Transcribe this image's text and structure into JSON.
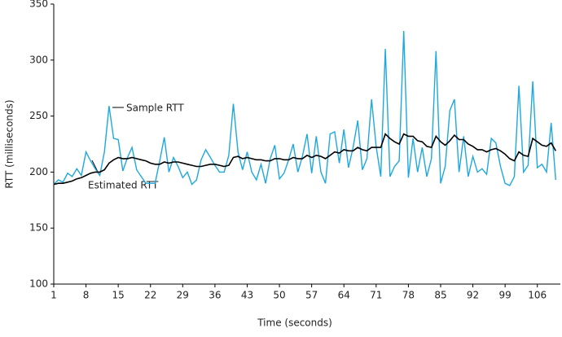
{
  "chart_data": {
    "type": "line",
    "xlabel": "Time (seconds)",
    "ylabel": "RTT (milliseconds)",
    "x": [
      1,
      2,
      3,
      4,
      5,
      6,
      7,
      8,
      9,
      10,
      11,
      12,
      13,
      14,
      15,
      16,
      17,
      18,
      19,
      20,
      21,
      22,
      23,
      24,
      25,
      26,
      27,
      28,
      29,
      30,
      31,
      32,
      33,
      34,
      35,
      36,
      37,
      38,
      39,
      40,
      41,
      42,
      43,
      44,
      45,
      46,
      47,
      48,
      49,
      50,
      51,
      52,
      53,
      54,
      55,
      56,
      57,
      58,
      59,
      60,
      61,
      62,
      63,
      64,
      65,
      66,
      67,
      68,
      69,
      70,
      71,
      72,
      73,
      74,
      75,
      76,
      77,
      78,
      79,
      80,
      81,
      82,
      83,
      84,
      85,
      86,
      87,
      88,
      89,
      90,
      91,
      92,
      93,
      94,
      95,
      96,
      97,
      98,
      99,
      100,
      101,
      102,
      103,
      104,
      105,
      106,
      107,
      108,
      109,
      110
    ],
    "series": [
      {
        "name": "Sample RTT",
        "color": "#1ea8e0",
        "values": [
          189,
          193,
          191,
          199,
          196,
          203,
          197,
          218,
          210,
          203,
          197,
          218,
          259,
          230,
          229,
          201,
          213,
          222,
          202,
          196,
          190,
          190,
          190,
          210,
          231,
          200,
          213,
          205,
          195,
          200,
          189,
          193,
          211,
          220,
          213,
          206,
          200,
          200,
          215,
          261,
          218,
          202,
          218,
          200,
          193,
          207,
          190,
          212,
          224,
          194,
          199,
          211,
          225,
          200,
          214,
          234,
          199,
          232,
          200,
          190,
          234,
          236,
          208,
          238,
          204,
          222,
          246,
          202,
          212,
          265,
          223,
          196,
          310,
          196,
          205,
          210,
          326,
          195,
          230,
          200,
          222,
          196,
          212,
          308,
          190,
          205,
          255,
          265,
          200,
          232,
          196,
          214,
          200,
          203,
          198,
          230,
          226,
          205,
          190,
          188,
          196,
          277,
          200,
          206,
          281,
          204,
          207,
          200,
          244,
          193
        ]
      },
      {
        "name": "Estimated RTT",
        "color": "#000000",
        "values": [
          189,
          190,
          190,
          191,
          192,
          194,
          195,
          197,
          199,
          200,
          200,
          202,
          208,
          211,
          213,
          212,
          212,
          213,
          212,
          211,
          210,
          208,
          207,
          207,
          209,
          208,
          209,
          209,
          208,
          207,
          206,
          205,
          205,
          206,
          207,
          207,
          206,
          205,
          206,
          213,
          214,
          212,
          213,
          212,
          211,
          211,
          210,
          210,
          212,
          212,
          211,
          211,
          213,
          212,
          212,
          215,
          213,
          215,
          214,
          212,
          215,
          218,
          217,
          220,
          219,
          219,
          222,
          220,
          219,
          222,
          222,
          222,
          234,
          230,
          227,
          225,
          234,
          232,
          232,
          228,
          227,
          223,
          222,
          232,
          227,
          224,
          228,
          233,
          229,
          229,
          225,
          223,
          220,
          220,
          218,
          220,
          221,
          219,
          216,
          212,
          210,
          218,
          215,
          214,
          230,
          227,
          224,
          223,
          226,
          219
        ]
      }
    ],
    "xlim": [
      1,
      111
    ],
    "ylim": [
      100,
      350
    ],
    "xticks": [
      1,
      8,
      15,
      22,
      29,
      36,
      43,
      50,
      57,
      64,
      71,
      78,
      85,
      92,
      99,
      106
    ],
    "yticks": [
      100,
      150,
      200,
      250,
      300,
      350
    ]
  }
}
